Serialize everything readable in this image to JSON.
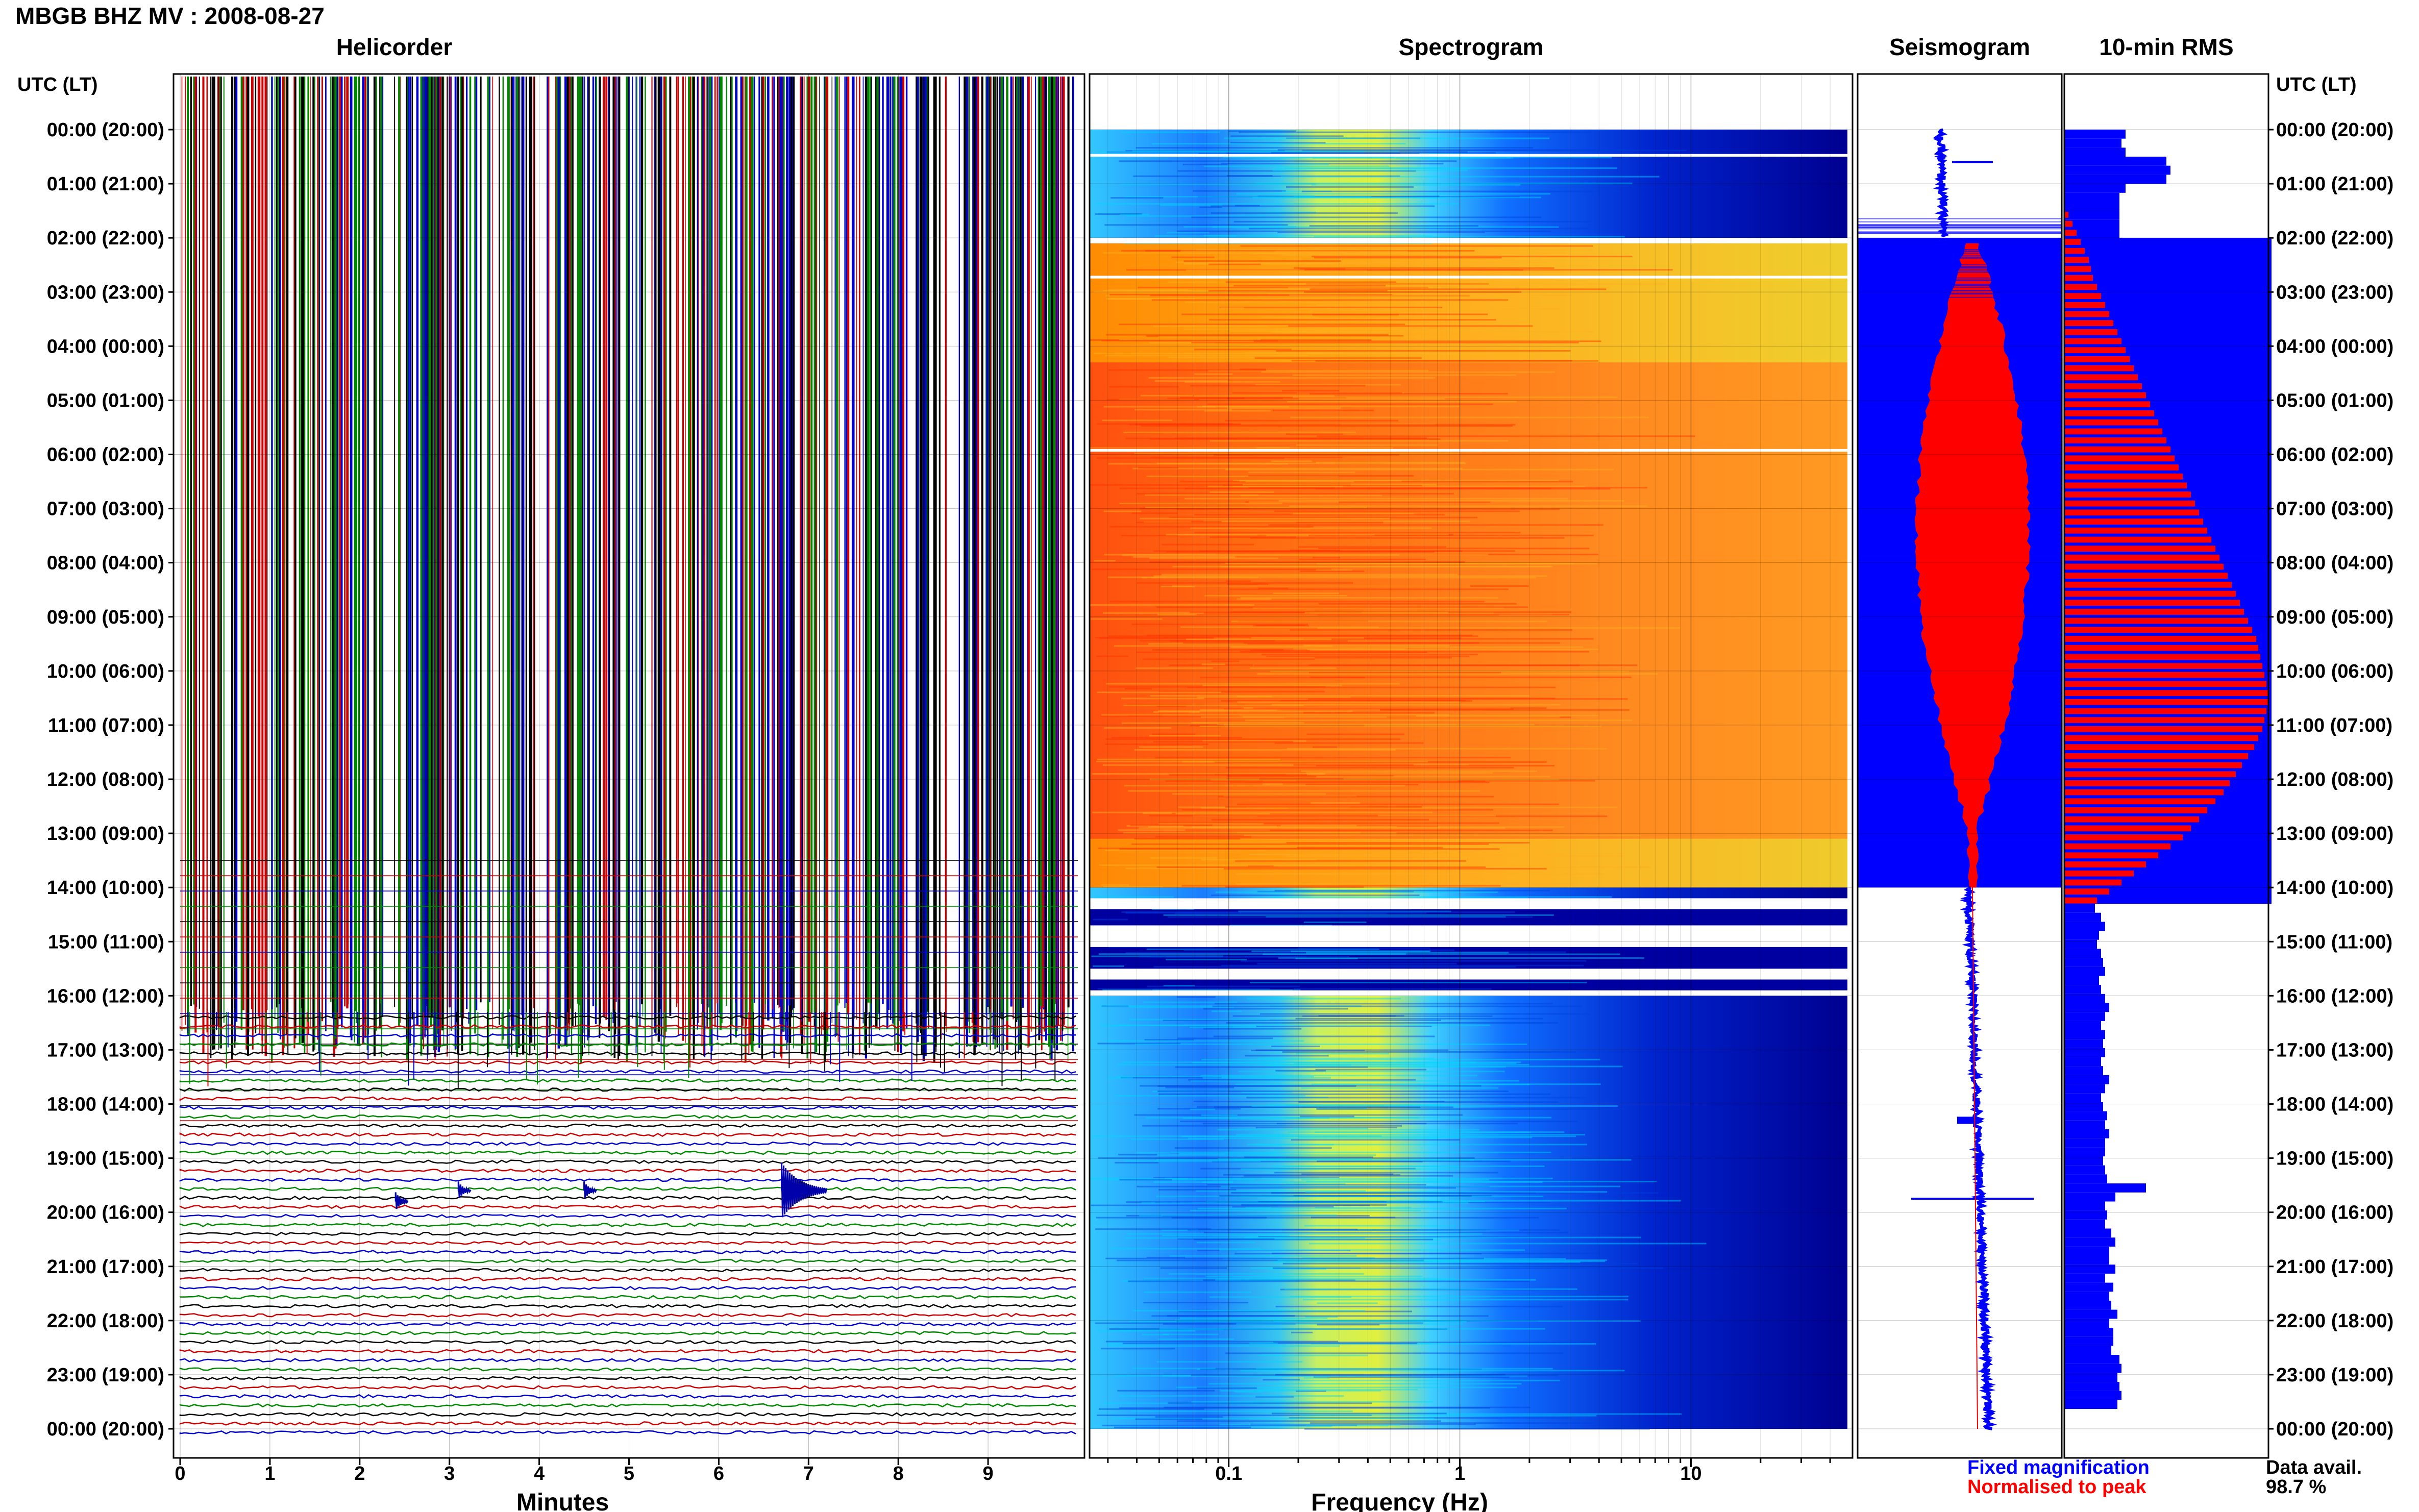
{
  "page_title": "MBGB BHZ MV : 2008-08-27",
  "time_axis": {
    "header": "UTC (LT)",
    "labels": [
      "00:00 (20:00)",
      "01:00 (21:00)",
      "02:00 (22:00)",
      "03:00 (23:00)",
      "04:00 (00:00)",
      "05:00 (01:00)",
      "06:00 (02:00)",
      "07:00 (03:00)",
      "08:00 (04:00)",
      "09:00 (05:00)",
      "10:00 (06:00)",
      "11:00 (07:00)",
      "12:00 (08:00)",
      "13:00 (09:00)",
      "14:00 (10:00)",
      "15:00 (11:00)",
      "16:00 (12:00)",
      "17:00 (13:00)",
      "18:00 (14:00)",
      "19:00 (15:00)",
      "20:00 (16:00)",
      "21:00 (17:00)",
      "22:00 (18:00)",
      "23:00 (19:00)",
      "00:00 (20:00)"
    ]
  },
  "colors": {
    "blue": "#0000ff",
    "red": "#ff0000",
    "helicorder_traces": [
      "#000000",
      "#cc0000",
      "#0000cc",
      "#008800"
    ]
  },
  "chart_data": [
    {
      "type": "line",
      "title": "Helicorder",
      "xlabel": "Minutes",
      "xlim": [
        0,
        10
      ],
      "x_ticks": [
        "0",
        "1",
        "2",
        "3",
        "4",
        "5",
        "6",
        "7",
        "8",
        "9"
      ],
      "ylim_hours": [
        0,
        24
      ],
      "rows_per_hour": 6,
      "saturated_until_hour": 16.3,
      "events": [
        {
          "hour": 19.6,
          "minute": 6.7,
          "size": "large"
        },
        {
          "hour": 19.6,
          "minute": 4.5,
          "size": "small"
        },
        {
          "hour": 19.6,
          "minute": 3.1,
          "size": "small"
        },
        {
          "hour": 19.8,
          "minute": 2.4,
          "size": "small"
        }
      ]
    },
    {
      "type": "heatmap",
      "title": "Spectrogram",
      "xlabel": "Frequency (Hz)",
      "x_scale": "log",
      "xlim": [
        0.025,
        50
      ],
      "x_ticks": [
        "0.1",
        "1",
        "10"
      ],
      "ylim_hours": [
        0,
        24
      ],
      "colormap": "jet",
      "high_energy_hours": [
        [
          2.1,
          14.0
        ]
      ],
      "data_gaps_hours": [
        [
          0.45,
          0.5
        ],
        [
          2.0,
          2.1
        ],
        [
          2.7,
          2.75
        ],
        [
          5.9,
          5.95
        ],
        [
          14.2,
          14.4
        ],
        [
          14.7,
          15.1
        ],
        [
          15.5,
          15.7
        ],
        [
          15.9,
          16.0
        ]
      ]
    },
    {
      "type": "line",
      "title": "Seismogram",
      "ylim_hours": [
        0,
        24
      ],
      "series": [
        {
          "name": "Fixed magnification",
          "color": "#0000ff"
        },
        {
          "name": "Normalised to peak",
          "color": "#ff0000"
        }
      ],
      "saturated_hours": [
        [
          2.0,
          14.0
        ]
      ]
    },
    {
      "type": "bar",
      "title": "10-min RMS",
      "orientation": "horizontal",
      "ylim_hours": [
        0,
        24
      ],
      "series": [
        {
          "name": "Fixed magnification",
          "color": "#0000ff",
          "bins_per_hour": 6,
          "values_before_hour_2": [
            0.3,
            0.28,
            0.3,
            0.5,
            0.52,
            0.5,
            0.3,
            0.27,
            0.27,
            0.27,
            0.27,
            0.27
          ],
          "saturated_hours": [
            2.0,
            14.3
          ],
          "values_after_hour_14_3": [
            0.15,
            0.18,
            0.2,
            0.17,
            0.16,
            0.18,
            0.19,
            0.2,
            0.17,
            0.18,
            0.2,
            0.22,
            0.2,
            0.18,
            0.2,
            0.19,
            0.2,
            0.18,
            0.19,
            0.22,
            0.2,
            0.18,
            0.19,
            0.21,
            0.2,
            0.22,
            0.2,
            0.2,
            0.19,
            0.2,
            0.21,
            0.4,
            0.25,
            0.2,
            0.21,
            0.2,
            0.23,
            0.25,
            0.22,
            0.22,
            0.25,
            0.2,
            0.24,
            0.22,
            0.23,
            0.26,
            0.22,
            0.24,
            0.24,
            0.23,
            0.27,
            0.28,
            0.26,
            0.27,
            0.28,
            0.26
          ]
        },
        {
          "name": "Normalised to peak",
          "color": "#ff0000",
          "bins_per_hour": 6,
          "hours": [
            1.5,
            14.3
          ],
          "values": [
            0.02,
            0.04,
            0.06,
            0.08,
            0.1,
            0.12,
            0.13,
            0.14,
            0.16,
            0.18,
            0.2,
            0.22,
            0.24,
            0.26,
            0.28,
            0.3,
            0.32,
            0.34,
            0.36,
            0.38,
            0.4,
            0.42,
            0.44,
            0.46,
            0.48,
            0.5,
            0.52,
            0.54,
            0.56,
            0.58,
            0.6,
            0.62,
            0.64,
            0.66,
            0.68,
            0.7,
            0.72,
            0.74,
            0.76,
            0.78,
            0.8,
            0.82,
            0.84,
            0.86,
            0.88,
            0.9,
            0.92,
            0.94,
            0.95,
            0.96,
            0.97,
            0.98,
            0.99,
            1.0,
            1.0,
            0.99,
            0.98,
            0.97,
            0.95,
            0.93,
            0.9,
            0.87,
            0.84,
            0.81,
            0.78,
            0.74,
            0.7,
            0.66,
            0.62,
            0.58,
            0.52,
            0.46,
            0.4,
            0.34,
            0.28,
            0.22,
            0.16
          ]
        }
      ]
    }
  ],
  "legend": {
    "fixed": "Fixed magnification",
    "normalised": "Normalised to peak"
  },
  "data_availability": {
    "label": "Data avail.",
    "value": "98.7 %"
  }
}
